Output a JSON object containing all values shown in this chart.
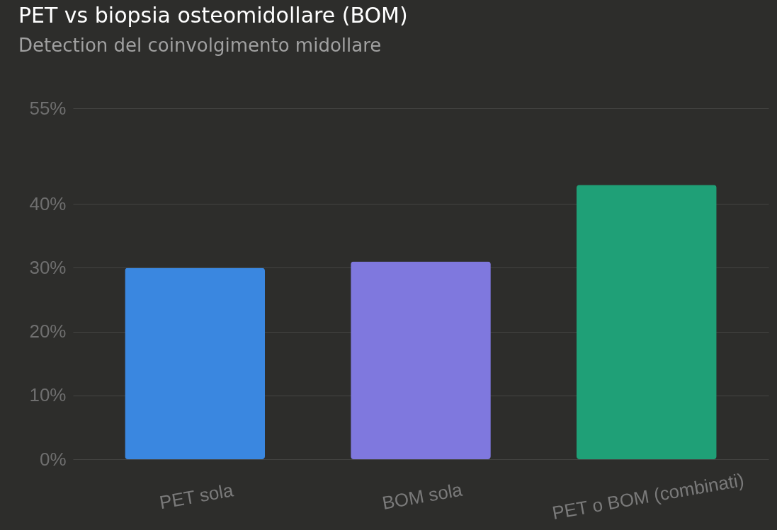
{
  "chart_data": {
    "type": "bar",
    "title": "PET vs biopsia osteomidollare (BOM)",
    "subtitle": "Detection del coinvolgimento midollare",
    "categories": [
      "PET sola",
      "BOM sola",
      "PET o BOM (combinati)"
    ],
    "values": [
      30,
      31,
      43
    ],
    "colors": [
      "#3a87e0",
      "#7f78de",
      "#1fa077"
    ],
    "ylim": [
      0,
      55
    ],
    "yticks": [
      {
        "value": 0,
        "label": "0%"
      },
      {
        "value": 10,
        "label": "10%"
      },
      {
        "value": 20,
        "label": "20%"
      },
      {
        "value": 30,
        "label": "30%"
      },
      {
        "value": 40,
        "label": "40%"
      },
      {
        "value": 55,
        "label": "55%"
      }
    ],
    "grid": "y",
    "legend": false
  }
}
